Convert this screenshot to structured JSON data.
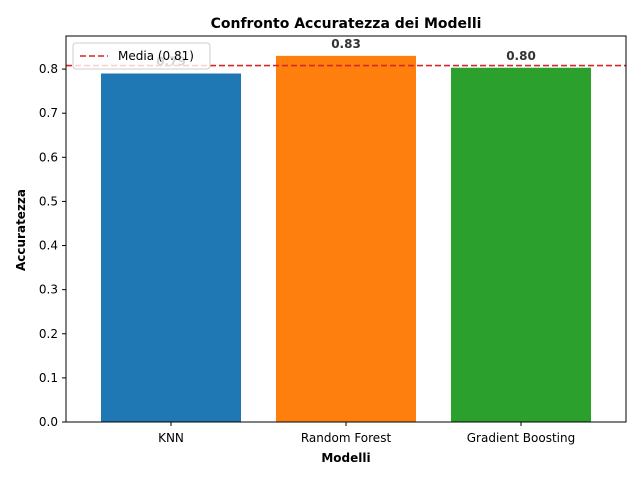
{
  "chart_data": {
    "type": "bar",
    "title": "Confronto Accuratezza dei Modelli",
    "xlabel": "Modelli",
    "ylabel": "Accuratezza",
    "categories": [
      "KNN",
      "Random Forest",
      "Gradient Boosting"
    ],
    "values": [
      0.79,
      0.83,
      0.803
    ],
    "data_labels": [
      "0.79",
      "0.83",
      "0.80"
    ],
    "colors": [
      "#1f77b4",
      "#ff7f0e",
      "#2ca02c"
    ],
    "ylim": [
      0,
      0.875
    ],
    "yticks": [
      0.0,
      0.1,
      0.2,
      0.3,
      0.4,
      0.5,
      0.6,
      0.7,
      0.8
    ],
    "ytick_labels": [
      "0.0",
      "0.1",
      "0.2",
      "0.3",
      "0.4",
      "0.5",
      "0.6",
      "0.7",
      "0.8"
    ],
    "reference_line": {
      "value": 0.808,
      "label": "Media (0.81)",
      "color": "#d62728",
      "style": "dashed"
    },
    "legend_position": "top-left",
    "grid": false
  }
}
